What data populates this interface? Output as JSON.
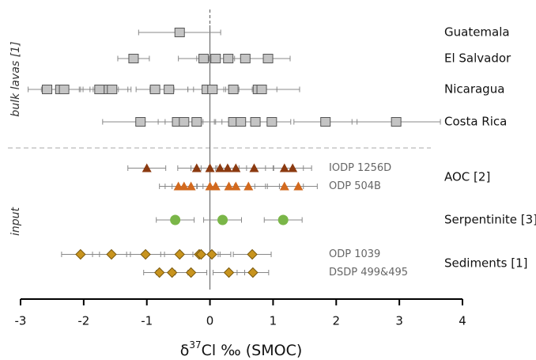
{
  "chart_data": {
    "type": "dotplot",
    "xlim": [
      -3,
      4
    ],
    "xticks": [
      -3,
      -2,
      -1,
      0,
      1,
      2,
      3,
      4
    ],
    "xlabel": {
      "symbol": "δ",
      "sup": "37",
      "rest": "Cl ‰ (SMOC)"
    },
    "sections": [
      {
        "label": "bulk lavas [1]",
        "rows": [
          {
            "label": "Guatemala",
            "series": [
              {
                "marker": "square",
                "color": "#c4c4c4",
                "values": [
                  -0.48
                ],
                "errors": [
                  0.65
                ]
              }
            ]
          },
          {
            "label": "El Salvador",
            "series": [
              {
                "marker": "square",
                "color": "#c4c4c4",
                "values": [
                  -1.21,
                  -0.1,
                  0.09,
                  0.29,
                  0.56,
                  0.92
                ],
                "errors": [
                  0.25,
                  0.4,
                  0.3,
                  0.3,
                  0.3,
                  0.35
                ]
              }
            ]
          },
          {
            "label": "Nicaragua",
            "series": [
              {
                "marker": "square",
                "color": "#c4c4c4",
                "values": [
                  -2.58,
                  -2.37,
                  -2.31,
                  -1.75,
                  -1.6,
                  -1.55,
                  -0.87,
                  -0.65,
                  -0.05,
                  0.04,
                  0.37,
                  0.76,
                  0.82
                ],
                "errors": [
                  0.3,
                  0.3,
                  0.3,
                  0.3,
                  0.3,
                  0.3,
                  0.3,
                  0.3,
                  0.3,
                  0.3,
                  0.3,
                  0.3,
                  0.6
                ]
              }
            ]
          },
          {
            "label": "Costa Rica",
            "series": [
              {
                "marker": "square",
                "color": "#c4c4c4",
                "values": [
                  -1.1,
                  -0.52,
                  -0.41,
                  -0.21,
                  0.37,
                  0.49,
                  0.72,
                  0.98,
                  1.83,
                  2.95
                ],
                "errors": [
                  0.6,
                  0.3,
                  0.3,
                  0.3,
                  0.3,
                  0.3,
                  0.3,
                  0.3,
                  0.5,
                  0.7
                ]
              }
            ]
          }
        ]
      },
      {
        "label": "input",
        "rows": [
          {
            "label": "AOC [2]",
            "series": [
              {
                "name": "IODP 1256D",
                "marker": "triangle",
                "color": "#8b3a10",
                "values": [
                  -1.0,
                  -0.21,
                  0.0,
                  0.16,
                  0.28,
                  0.41,
                  0.7,
                  1.18,
                  1.31
                ],
                "errors": [
                  0.3,
                  0.3,
                  0.3,
                  0.3,
                  0.3,
                  0.3,
                  0.3,
                  0.3,
                  0.3
                ]
              },
              {
                "name": "ODP 504B",
                "marker": "triangle",
                "color": "#d2691e",
                "values": [
                  -0.5,
                  -0.41,
                  -0.3,
                  0.0,
                  0.09,
                  0.3,
                  0.41,
                  0.61,
                  1.18,
                  1.4
                ],
                "errors": [
                  0.3,
                  0.3,
                  0.3,
                  0.3,
                  0.3,
                  0.3,
                  0.3,
                  0.3,
                  0.3,
                  0.3
                ]
              }
            ]
          },
          {
            "label": "Serpentinite [3]",
            "series": [
              {
                "marker": "circle",
                "color": "#7ab648",
                "values": [
                  -0.55,
                  0.2,
                  1.16
                ],
                "errors": [
                  0.3,
                  0.3,
                  0.3
                ]
              }
            ]
          },
          {
            "label": "Sediments [1]",
            "series": [
              {
                "name": "ODP 1039",
                "marker": "diamond",
                "color": "#c8941e",
                "values": [
                  -2.05,
                  -1.56,
                  -1.02,
                  -0.48,
                  -0.17,
                  -0.14,
                  0.03,
                  0.67
                ],
                "errors": [
                  0.3,
                  0.3,
                  0.3,
                  0.3,
                  0.3,
                  0.3,
                  0.3,
                  0.3
                ]
              },
              {
                "name": "DSDP 499&495",
                "marker": "diamond",
                "color": "#c8941e",
                "values": [
                  -0.8,
                  -0.6,
                  -0.3,
                  0.3,
                  0.68
                ],
                "errors": [
                  0.25,
                  0.25,
                  0.25,
                  0.25,
                  0.25
                ]
              }
            ]
          }
        ]
      }
    ]
  }
}
